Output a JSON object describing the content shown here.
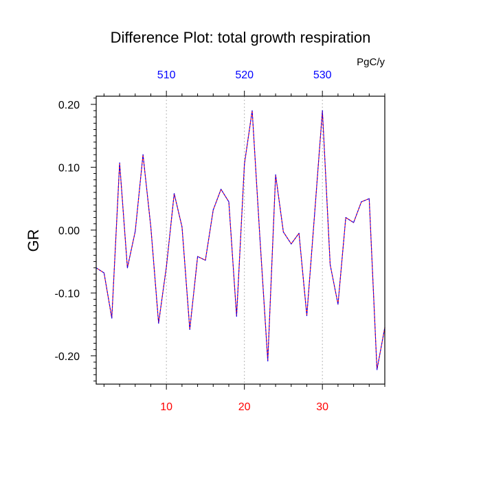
{
  "chart_data": {
    "type": "line",
    "title": "Difference Plot: total growth respiration",
    "units_label": "PgC/y",
    "ylabel": "GR",
    "xlabel": "",
    "xlim": [
      1,
      38
    ],
    "ylim": [
      -0.245,
      0.213
    ],
    "y_ticks": [
      {
        "value": 0.2,
        "label": "0.20"
      },
      {
        "value": 0.1,
        "label": "0.10"
      },
      {
        "value": 0.0,
        "label": "0.00"
      },
      {
        "value": -0.1,
        "label": "-0.10"
      },
      {
        "value": -0.2,
        "label": "-0.20"
      }
    ],
    "x_ticks_bottom": [
      {
        "value": 10,
        "label": "10"
      },
      {
        "value": 20,
        "label": "20"
      },
      {
        "value": 30,
        "label": "30"
      }
    ],
    "x_ticks_top": [
      {
        "value": 10,
        "label": "510"
      },
      {
        "value": 20,
        "label": "520"
      },
      {
        "value": 30,
        "label": "530"
      }
    ],
    "vertical_gridlines_at": [
      10,
      20,
      30
    ],
    "colors": {
      "series_primary": "#ff0000",
      "series_overlay": "#0000ff",
      "bottom_tick_labels": "#ff0000",
      "top_tick_labels": "#0000ff",
      "gridline": "#b4b4b4",
      "axes": "#000000"
    },
    "series": [
      {
        "name": "GR",
        "x": [
          1,
          2,
          3,
          4,
          5,
          6,
          7,
          8,
          9,
          10,
          11,
          12,
          13,
          14,
          15,
          16,
          17,
          18,
          19,
          20,
          21,
          22,
          23,
          24,
          25,
          26,
          27,
          28,
          29,
          30,
          31,
          32,
          33,
          34,
          35,
          36,
          37,
          38
        ],
        "values": [
          -0.06,
          -0.068,
          -0.14,
          0.107,
          -0.06,
          -0.002,
          0.12,
          0.005,
          -0.148,
          -0.058,
          0.058,
          0.005,
          -0.158,
          -0.042,
          -0.048,
          0.032,
          0.065,
          0.045,
          -0.137,
          0.105,
          0.19,
          -0.015,
          -0.208,
          0.088,
          -0.003,
          -0.022,
          -0.005,
          -0.136,
          0.025,
          0.19,
          -0.055,
          -0.118,
          0.02,
          0.012,
          0.045,
          0.05,
          -0.222,
          -0.155
        ]
      }
    ]
  }
}
